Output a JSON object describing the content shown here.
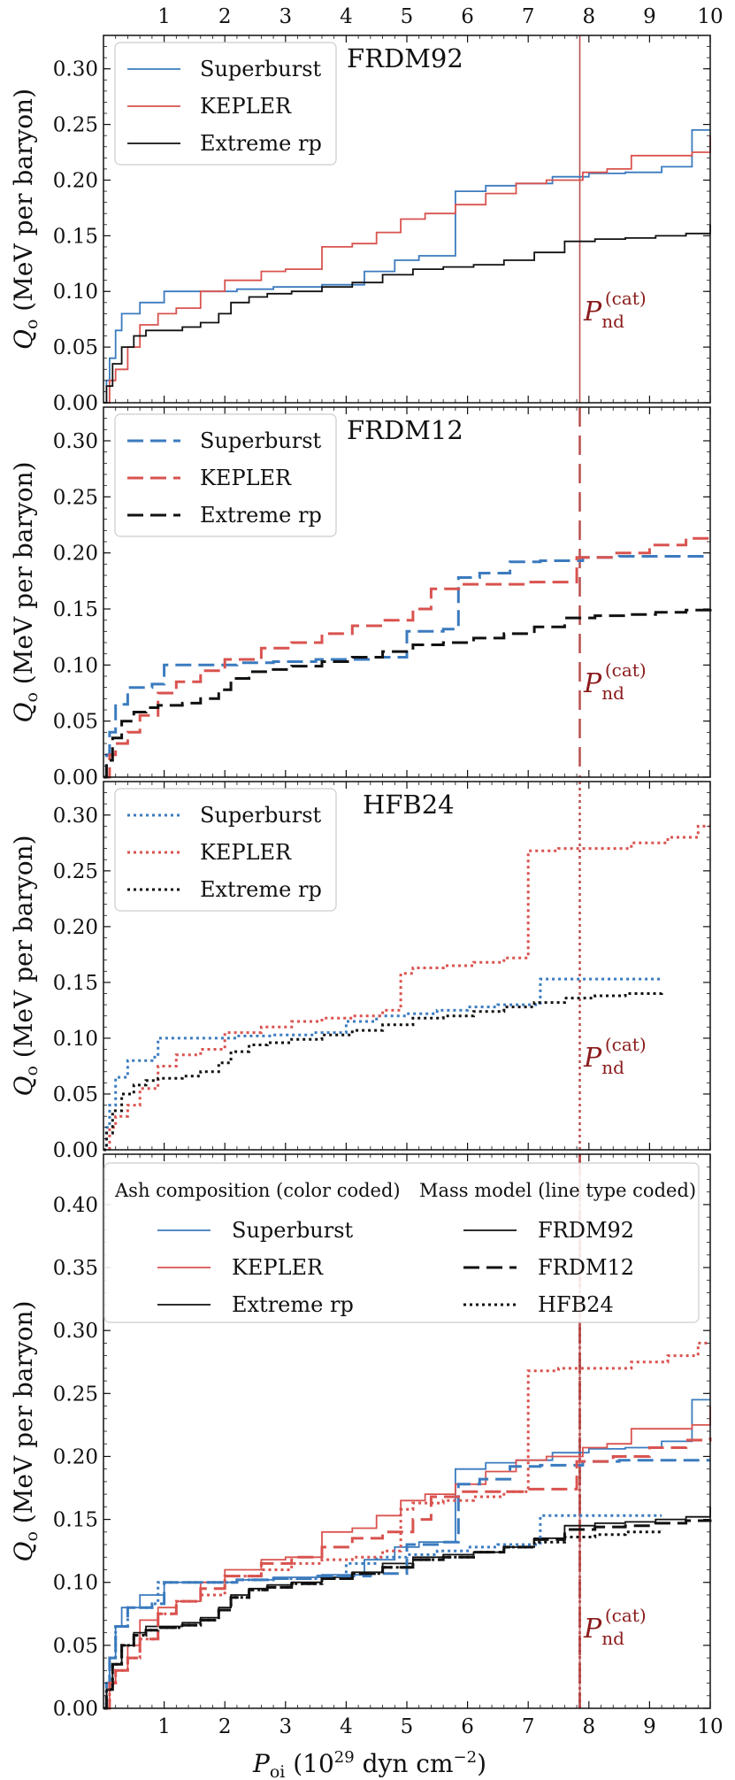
{
  "figure": {
    "y_axis_label_main": "Q",
    "y_axis_label_sub": "o",
    "y_axis_label_rest": " (MeV per baryon)",
    "x_axis_label_main": "P",
    "x_axis_label_sub": "oi",
    "x_axis_label_rest1": " (10",
    "x_axis_label_exp": "29",
    "x_axis_label_rest2": " dyn cm",
    "x_axis_label_exp2": "−2",
    "x_axis_label_rest3": ")",
    "pnd_main": "P",
    "pnd_sub": "nd",
    "pnd_sup": "(cat)",
    "x_ticks": [
      "1",
      "2",
      "3",
      "4",
      "5",
      "6",
      "7",
      "8",
      "9",
      "10"
    ]
  },
  "colors": {
    "Superburst": "#3b7bbf",
    "KEPLER": "#d9534f",
    "Extreme rp": "#111111",
    "pnd_line": "#b03a3a"
  },
  "legend_combined": {
    "ash_title": "Ash composition (color coded)",
    "mass_title": "Mass model (line type coded)",
    "ash_items": [
      "Superburst",
      "KEPLER",
      "Extreme rp"
    ],
    "mass_items": [
      "FRDM92",
      "FRDM12",
      "HFB24"
    ]
  },
  "chart_data": [
    {
      "type": "line",
      "title": "FRDM92",
      "xlim": [
        0,
        10
      ],
      "ylim": [
        0,
        0.33
      ],
      "yticks": [
        "0.00",
        "0.05",
        "0.10",
        "0.15",
        "0.20",
        "0.25",
        "0.30"
      ],
      "pnd_x": 7.85,
      "series": [
        {
          "name": "Superburst",
          "style": "solid",
          "x": [
            0,
            0.05,
            0.1,
            0.2,
            0.3,
            0.6,
            1.0,
            1.6,
            2.2,
            2.8,
            3.6,
            4.3,
            4.8,
            5.2,
            5.5,
            5.8,
            6.3,
            6.8,
            7.4,
            8.0,
            8.6,
            9.2,
            9.7,
            10.0
          ],
          "y": [
            0,
            0.02,
            0.04,
            0.065,
            0.08,
            0.09,
            0.1,
            0.1,
            0.102,
            0.104,
            0.106,
            0.118,
            0.128,
            0.132,
            0.132,
            0.19,
            0.195,
            0.197,
            0.203,
            0.206,
            0.207,
            0.212,
            0.245,
            0.245
          ]
        },
        {
          "name": "KEPLER",
          "style": "solid",
          "x": [
            0,
            0.1,
            0.2,
            0.4,
            0.6,
            0.9,
            1.2,
            1.6,
            2.0,
            2.6,
            3.0,
            3.6,
            4.1,
            4.5,
            4.9,
            5.3,
            5.8,
            6.3,
            6.8,
            7.3,
            7.9,
            8.3,
            8.7,
            9.1,
            9.7,
            10.0
          ],
          "y": [
            0,
            0.02,
            0.03,
            0.05,
            0.07,
            0.08,
            0.085,
            0.1,
            0.11,
            0.118,
            0.12,
            0.14,
            0.143,
            0.153,
            0.165,
            0.17,
            0.178,
            0.188,
            0.197,
            0.2,
            0.207,
            0.21,
            0.222,
            0.222,
            0.225,
            0.24
          ]
        },
        {
          "name": "Extreme rp",
          "style": "solid",
          "x": [
            0,
            0.05,
            0.15,
            0.3,
            0.5,
            0.7,
            0.9,
            1.3,
            1.6,
            1.9,
            2.1,
            2.4,
            2.7,
            3.1,
            3.6,
            4.1,
            4.6,
            5.1,
            5.6,
            6.1,
            6.6,
            7.1,
            7.6,
            8.1,
            8.6,
            9.1,
            9.6,
            10.0
          ],
          "y": [
            0,
            0.015,
            0.035,
            0.05,
            0.06,
            0.065,
            0.065,
            0.068,
            0.072,
            0.08,
            0.09,
            0.095,
            0.098,
            0.1,
            0.104,
            0.108,
            0.115,
            0.12,
            0.122,
            0.124,
            0.128,
            0.135,
            0.145,
            0.147,
            0.148,
            0.15,
            0.152,
            0.16
          ]
        }
      ]
    },
    {
      "type": "line",
      "title": "FRDM12",
      "xlim": [
        0,
        10
      ],
      "ylim": [
        0,
        0.33
      ],
      "yticks": [
        "0.00",
        "0.05",
        "0.10",
        "0.15",
        "0.20",
        "0.25",
        "0.30"
      ],
      "pnd_x": 7.85,
      "series": [
        {
          "name": "Superburst",
          "style": "dash",
          "x": [
            0,
            0.05,
            0.1,
            0.2,
            0.4,
            0.8,
            1.0,
            1.6,
            2.2,
            2.8,
            3.5,
            4.4,
            5.0,
            5.6,
            5.85,
            6.2,
            6.7,
            7.2,
            7.9,
            8.5,
            9.0,
            9.6,
            10.0
          ],
          "y": [
            0,
            0.02,
            0.04,
            0.065,
            0.08,
            0.083,
            0.1,
            0.1,
            0.102,
            0.103,
            0.105,
            0.107,
            0.13,
            0.132,
            0.178,
            0.182,
            0.192,
            0.193,
            0.196,
            0.197,
            0.197,
            0.197,
            0.197
          ]
        },
        {
          "name": "KEPLER",
          "style": "dash",
          "x": [
            0,
            0.1,
            0.2,
            0.4,
            0.6,
            0.9,
            1.2,
            1.6,
            2.0,
            2.6,
            3.1,
            3.6,
            4.1,
            4.6,
            5.1,
            5.4,
            5.9,
            6.4,
            7.0,
            7.8,
            8.4,
            9.0,
            9.6,
            10.0
          ],
          "y": [
            0,
            0.02,
            0.03,
            0.04,
            0.055,
            0.075,
            0.085,
            0.095,
            0.105,
            0.115,
            0.12,
            0.128,
            0.135,
            0.14,
            0.15,
            0.168,
            0.172,
            0.172,
            0.174,
            0.196,
            0.2,
            0.207,
            0.213,
            0.215
          ]
        },
        {
          "name": "Extreme rp",
          "style": "dash",
          "x": [
            0,
            0.05,
            0.15,
            0.3,
            0.5,
            0.7,
            0.9,
            1.3,
            1.6,
            1.9,
            2.1,
            2.4,
            2.7,
            3.1,
            3.6,
            4.1,
            4.6,
            5.1,
            5.6,
            6.1,
            6.6,
            7.1,
            7.6,
            8.1,
            8.6,
            9.1,
            9.6,
            10.0
          ],
          "y": [
            0,
            0.015,
            0.035,
            0.05,
            0.058,
            0.062,
            0.064,
            0.066,
            0.07,
            0.078,
            0.088,
            0.094,
            0.096,
            0.099,
            0.103,
            0.107,
            0.112,
            0.118,
            0.12,
            0.124,
            0.128,
            0.134,
            0.142,
            0.144,
            0.145,
            0.147,
            0.149,
            0.15
          ]
        }
      ]
    },
    {
      "type": "line",
      "title": "HFB24",
      "xlim": [
        0,
        10
      ],
      "ylim": [
        0,
        0.33
      ],
      "yticks": [
        "0.00",
        "0.05",
        "0.10",
        "0.15",
        "0.20",
        "0.25",
        "0.30"
      ],
      "pnd_x": 7.85,
      "series": [
        {
          "name": "Superburst",
          "style": "dot",
          "x": [
            0,
            0.05,
            0.1,
            0.2,
            0.4,
            0.8,
            0.9,
            1.6,
            2.2,
            2.8,
            3.5,
            4.0,
            4.5,
            5.0,
            5.5,
            6.0,
            6.5,
            7.2,
            7.7,
            8.3,
            9.2
          ],
          "y": [
            0,
            0.02,
            0.04,
            0.065,
            0.08,
            0.083,
            0.1,
            0.1,
            0.102,
            0.103,
            0.105,
            0.115,
            0.12,
            0.122,
            0.125,
            0.128,
            0.13,
            0.153,
            0.153,
            0.153,
            0.153
          ]
        },
        {
          "name": "KEPLER",
          "style": "dot",
          "x": [
            0,
            0.1,
            0.2,
            0.4,
            0.6,
            0.9,
            1.2,
            1.6,
            2.0,
            2.6,
            3.1,
            3.6,
            4.1,
            4.6,
            4.9,
            5.1,
            5.6,
            6.1,
            6.6,
            7.0,
            7.5,
            8.1,
            8.7,
            9.3,
            9.8,
            10.0
          ],
          "y": [
            0,
            0.02,
            0.03,
            0.04,
            0.055,
            0.075,
            0.085,
            0.09,
            0.105,
            0.11,
            0.115,
            0.118,
            0.12,
            0.125,
            0.158,
            0.163,
            0.165,
            0.168,
            0.172,
            0.268,
            0.27,
            0.27,
            0.275,
            0.28,
            0.29,
            0.29
          ]
        },
        {
          "name": "Extreme rp",
          "style": "dot",
          "x": [
            0,
            0.05,
            0.15,
            0.3,
            0.5,
            0.7,
            0.9,
            1.3,
            1.6,
            1.9,
            2.1,
            2.4,
            2.7,
            3.1,
            3.6,
            4.1,
            4.6,
            5.1,
            5.6,
            6.1,
            6.6,
            7.1,
            7.6,
            8.1,
            8.6,
            9.2
          ],
          "y": [
            0,
            0.015,
            0.035,
            0.05,
            0.058,
            0.062,
            0.064,
            0.066,
            0.07,
            0.078,
            0.088,
            0.094,
            0.096,
            0.099,
            0.103,
            0.107,
            0.112,
            0.118,
            0.12,
            0.124,
            0.128,
            0.132,
            0.136,
            0.138,
            0.14,
            0.142
          ]
        }
      ]
    },
    {
      "type": "line",
      "title": "",
      "xlim": [
        0,
        10
      ],
      "ylim": [
        0,
        0.44
      ],
      "yticks": [
        "0.00",
        "0.05",
        "0.10",
        "0.15",
        "0.20",
        "0.25",
        "0.30",
        "0.35",
        "0.40"
      ],
      "pnd_x": 7.85,
      "combined": true,
      "series": []
    }
  ]
}
